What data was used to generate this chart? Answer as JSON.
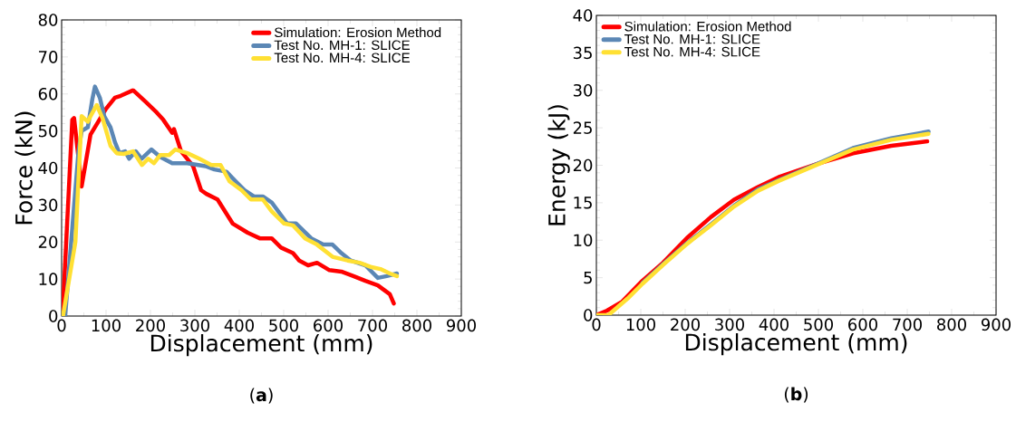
{
  "chart_data": [
    {
      "type": "line",
      "xlabel": "Displacement (mm)",
      "ylabel": "Force (kN)",
      "xlim": [
        0,
        900
      ],
      "ylim": [
        0,
        80
      ],
      "xticks": [
        0,
        100,
        200,
        300,
        400,
        500,
        600,
        700,
        800,
        900
      ],
      "yticks": [
        0,
        10,
        20,
        30,
        40,
        50,
        60,
        70,
        80
      ],
      "legend": "top right",
      "annotations": [
        "(**a**)"
      ],
      "series": [
        {
          "name": "Simulation: Erosion Method",
          "color": "#ff0000",
          "x": [
            2,
            24,
            28,
            45,
            65,
            100,
            120,
            133,
            161,
            188,
            214,
            229,
            249,
            253,
            269,
            296,
            314,
            326,
            351,
            385,
            419,
            446,
            473,
            494,
            521,
            535,
            555,
            575,
            603,
            630,
            657,
            684,
            712,
            739,
            748
          ],
          "values": [
            0,
            53,
            53.5,
            35,
            49,
            56,
            59,
            59.5,
            61,
            58,
            55,
            53,
            49.5,
            50.5,
            44.5,
            40.5,
            34,
            33,
            31.5,
            25,
            22.5,
            21,
            21,
            18.5,
            17,
            15,
            13.7,
            14.4,
            12.4,
            12,
            10.8,
            9.5,
            8.3,
            5.9,
            3.4
          ]
        },
        {
          "name": "Test No. MH-1: SLICE",
          "color": "#5b87b5",
          "x": [
            8,
            38,
            45,
            59,
            69,
            75,
            86,
            96,
            110,
            120,
            130,
            143,
            152,
            167,
            180,
            202,
            222,
            249,
            283,
            324,
            344,
            371,
            392,
            412,
            433,
            453,
            473,
            508,
            528,
            562,
            589,
            610,
            630,
            651,
            684,
            712,
            732,
            755
          ],
          "values": [
            0,
            44.5,
            50,
            51,
            58.5,
            62,
            59,
            54,
            51,
            47,
            44,
            44.5,
            42.5,
            44.5,
            42.5,
            45,
            43,
            41.3,
            41.3,
            40.5,
            39.6,
            39,
            36.4,
            34,
            32.3,
            32.3,
            30.7,
            25,
            25,
            21,
            19.3,
            19.3,
            17,
            15,
            13.7,
            10.3,
            10.8,
            11.5
          ]
        },
        {
          "name": "Test No. MH-4: SLICE",
          "color": "#ffe033",
          "x": [
            3,
            31,
            45,
            59,
            65,
            79,
            92,
            110,
            124,
            140,
            161,
            181,
            195,
            208,
            222,
            242,
            256,
            283,
            310,
            337,
            358,
            378,
            405,
            426,
            453,
            473,
            501,
            521,
            548,
            575,
            610,
            644,
            671,
            698,
            718,
            739,
            755
          ],
          "values": [
            0,
            20,
            54,
            52.5,
            54,
            57,
            53.5,
            46,
            44,
            43.8,
            44.5,
            40.8,
            42.5,
            41.3,
            43.5,
            43.5,
            45,
            44,
            42.5,
            40.8,
            40.8,
            36.4,
            34,
            31.5,
            31.5,
            28.3,
            25,
            24.5,
            21,
            19.3,
            16,
            15,
            14.4,
            13.2,
            12.7,
            11.5,
            10.8
          ]
        }
      ]
    },
    {
      "type": "line",
      "xlabel": "Displacement (mm)",
      "ylabel": "Energy (kJ)",
      "xlim": [
        0,
        900
      ],
      "ylim": [
        0,
        40
      ],
      "xticks": [
        0,
        100,
        200,
        300,
        400,
        500,
        600,
        700,
        800,
        900
      ],
      "yticks": [
        0,
        5,
        10,
        15,
        20,
        25,
        30,
        35,
        40
      ],
      "legend": "top left",
      "annotations": [
        "(**b**)"
      ],
      "series": [
        {
          "name": "Simulation: Erosion Method",
          "color": "#ff0000",
          "x": [
            0,
            24,
            58,
            104,
            150,
            204,
            258,
            310,
            364,
            410,
            498,
            578,
            664,
            745
          ],
          "values": [
            0,
            0.6,
            1.8,
            4.6,
            7,
            10.3,
            13.1,
            15.4,
            17.1,
            18.4,
            20.2,
            21.6,
            22.6,
            23.2
          ]
        },
        {
          "name": "Test No. MH-1: SLICE",
          "color": "#5b87b5",
          "x": [
            104,
            150,
            204,
            258,
            310,
            364,
            410,
            498,
            578,
            664,
            748
          ],
          "values": [
            4.3,
            6.8,
            9.6,
            12.1,
            14.6,
            16.8,
            18,
            20.2,
            22.3,
            23.6,
            24.5
          ]
        },
        {
          "name": "Test No. MH-4: SLICE",
          "color": "#ffe033",
          "x": [
            0,
            27,
            70,
            104,
            150,
            204,
            258,
            310,
            364,
            410,
            498,
            578,
            664,
            748
          ],
          "values": [
            0,
            0,
            2.2,
            4.2,
            6.7,
            9.5,
            12,
            14.5,
            16.6,
            17.9,
            20.1,
            22.1,
            23.4,
            24.2
          ]
        }
      ]
    }
  ]
}
